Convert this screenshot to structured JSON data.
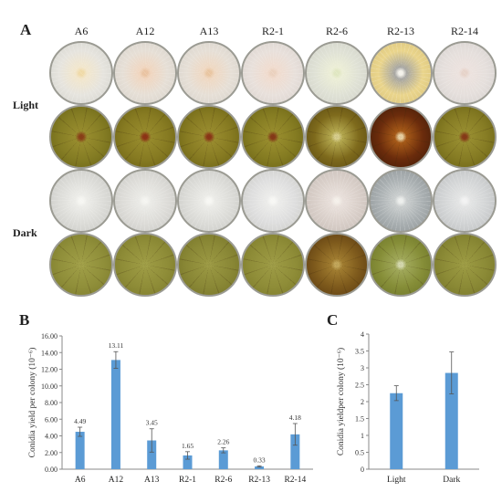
{
  "figure": {
    "panel_labels": [
      "A",
      "B",
      "C"
    ],
    "strains": [
      "A6",
      "A12",
      "A13",
      "R2-1",
      "R2-6",
      "R2-13",
      "R2-14"
    ],
    "conditions": [
      "Light",
      "Dark"
    ],
    "dish_rows": [
      {
        "condition": "Light",
        "side": "front",
        "colors": [
          {
            "edge": "#d3d3cd",
            "mid": "#e6e4de",
            "center": "#f2e6cc",
            "spot": "#efd9a6"
          },
          {
            "edge": "#d6d2cb",
            "mid": "#e6dfd6",
            "center": "#f0d6c0",
            "spot": "#e9c2a0"
          },
          {
            "edge": "#d6d2cb",
            "mid": "#e6dfd6",
            "center": "#efd8c2",
            "spot": "#e8c49f"
          },
          {
            "edge": "#d8d2cd",
            "mid": "#e8e0db",
            "center": "#f0dccf",
            "spot": "#ead0bd"
          },
          {
            "edge": "#d0d1c8",
            "mid": "#dfe1d5",
            "center": "#eceed6",
            "spot": "#dfe6c0"
          },
          {
            "edge": "#d8c27a",
            "mid": "#ead58c",
            "center": "#a7a6a2",
            "spot": "#f3f1ea"
          },
          {
            "edge": "#d4d0cd",
            "mid": "#e5dfdc",
            "center": "#ece2de",
            "spot": "#e6d2c8"
          }
        ]
      },
      {
        "condition": "Light",
        "side": "reverse",
        "colors": [
          {
            "edge": "#6a6416",
            "mid": "#857d24",
            "center": "#978c2e",
            "spot": "#8a3f18"
          },
          {
            "edge": "#6c6214",
            "mid": "#877b22",
            "center": "#968a2c",
            "spot": "#8e3416"
          },
          {
            "edge": "#6a6214",
            "mid": "#877b22",
            "center": "#988b2e",
            "spot": "#8b3617"
          },
          {
            "edge": "#6b6315",
            "mid": "#857c22",
            "center": "#978c2d",
            "spot": "#863a18"
          },
          {
            "edge": "#5a4a12",
            "mid": "#7e6a1c",
            "center": "#b3a74e",
            "spot": "#d8cf8e"
          },
          {
            "edge": "#3e1a08",
            "mid": "#6b2c0c",
            "center": "#a65a18",
            "spot": "#e9d2a4"
          },
          {
            "edge": "#6a6214",
            "mid": "#867c24",
            "center": "#978d30",
            "spot": "#873a18"
          }
        ]
      },
      {
        "condition": "Dark",
        "side": "front",
        "colors": [
          {
            "edge": "#c9c9c5",
            "mid": "#dcdcd8",
            "center": "#ecece8",
            "spot": "#f6f6f2"
          },
          {
            "edge": "#c9c9c5",
            "mid": "#dddcd8",
            "center": "#eaeae6",
            "spot": "#f4f4f0"
          },
          {
            "edge": "#c9c9c5",
            "mid": "#dcdcd8",
            "center": "#ebebe7",
            "spot": "#f7f7f3"
          },
          {
            "edge": "#cbcbc7",
            "mid": "#dedede",
            "center": "#ececea",
            "spot": "#f7f7f4"
          },
          {
            "edge": "#c7bdb7",
            "mid": "#d9cfc9",
            "center": "#e8dfda",
            "spot": "#f4efe9"
          },
          {
            "edge": "#8e9496",
            "mid": "#aab0b2",
            "center": "#c9cdcd",
            "spot": "#eceeec"
          },
          {
            "edge": "#bcbebf",
            "mid": "#d2d4d5",
            "center": "#e3e4e4",
            "spot": "#f2f2f2"
          }
        ]
      },
      {
        "condition": "Dark",
        "side": "reverse",
        "colors": [
          {
            "edge": "#7c7b2c",
            "mid": "#908f3a",
            "center": "#9c9b44",
            "spot": "#a3a24a"
          },
          {
            "edge": "#7c7a2a",
            "mid": "#8f8d38",
            "center": "#9b9942",
            "spot": "#a1a048"
          },
          {
            "edge": "#767428",
            "mid": "#8a8836",
            "center": "#979540",
            "spot": "#9e9c46"
          },
          {
            "edge": "#7c7a2a",
            "mid": "#8f8d38",
            "center": "#9a9842",
            "spot": "#a09e48"
          },
          {
            "edge": "#5a3a10",
            "mid": "#7e5a1c",
            "center": "#a07c30",
            "spot": "#c4a85c"
          },
          {
            "edge": "#6c7428",
            "mid": "#868e38",
            "center": "#a0a85a",
            "spot": "#d6dbb0"
          },
          {
            "edge": "#777628",
            "mid": "#8b8a36",
            "center": "#989740",
            "spot": "#9f9e46"
          }
        ]
      }
    ]
  },
  "chart_data": [
    {
      "type": "bar",
      "panel": "B",
      "ylabel": "Conidia yield per colony (10⁻⁶)",
      "categories": [
        "A6",
        "A12",
        "A13",
        "R2-1",
        "R2-6",
        "R2-13",
        "R2-14"
      ],
      "values": [
        4.49,
        13.11,
        3.45,
        1.65,
        2.26,
        0.33,
        4.18
      ],
      "value_labels": [
        "4.49",
        "13.11",
        "3.45",
        "1.65",
        "2.26",
        "0.33",
        "4.18"
      ],
      "errors": [
        0.55,
        1.0,
        1.4,
        0.45,
        0.3,
        0.08,
        1.3
      ],
      "ylim": [
        0,
        16
      ],
      "yticks": [
        "0.00",
        "2.00",
        "4.00",
        "6.00",
        "8.00",
        "10.00",
        "12.00",
        "14.00",
        "16.00"
      ],
      "bar_color": "#5b9bd5",
      "grid": false
    },
    {
      "type": "bar",
      "panel": "C",
      "ylabel": "Conidia yieldper colony (10⁻⁶)",
      "categories": [
        "Light",
        "Dark"
      ],
      "values": [
        2.25,
        2.85
      ],
      "errors": [
        0.22,
        0.62
      ],
      "ylim": [
        0,
        4
      ],
      "yticks": [
        "0",
        "0.5",
        "1",
        "1.5",
        "2",
        "2.5",
        "3",
        "3.5",
        "4"
      ],
      "bar_color": "#5b9bd5",
      "grid": false
    }
  ]
}
